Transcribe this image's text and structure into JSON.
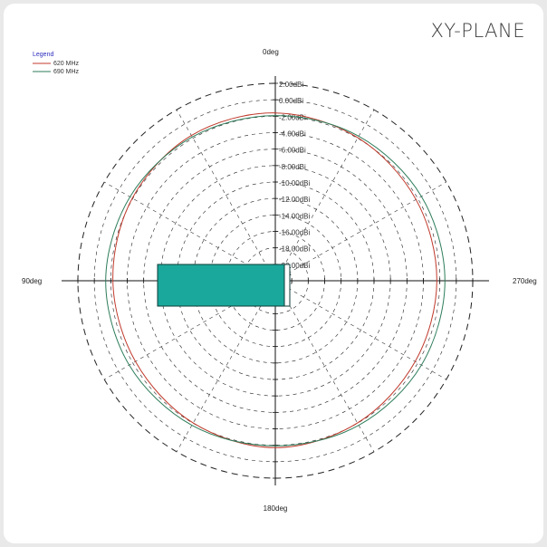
{
  "title": "XY-PLANE",
  "chart_data": {
    "type": "polar",
    "legend": {
      "title": "Legend",
      "position": "top-left",
      "entries": [
        {
          "label": "620 MHz",
          "color": "#c0392b"
        },
        {
          "label": "690 MHz",
          "color": "#2e7d5b"
        }
      ]
    },
    "angle_labels": [
      {
        "angle": 0,
        "label": "0deg"
      },
      {
        "angle": 90,
        "label": "90deg"
      },
      {
        "angle": 180,
        "label": "180deg"
      },
      {
        "angle": 270,
        "label": "270deg"
      }
    ],
    "radial_ticks": [
      "2.00dBi",
      "0.00dBi",
      "-2.00dBi",
      "-4.00dBi",
      "-6.00dBi",
      "-8.00dBi",
      "-10.00dBi",
      "-12.00dBi",
      "-14.00dBi",
      "-16.00dBi",
      "-18.00dBi",
      "-20.00dBi"
    ],
    "radial_range": [
      -20,
      2
    ],
    "grid": true,
    "series": [
      {
        "name": "620 MHz",
        "color": "#c0392b",
        "angles": [
          0,
          30,
          60,
          90,
          120,
          150,
          180,
          210,
          240,
          270,
          300,
          330
        ],
        "values": [
          -1.3,
          -1.6,
          -1.9,
          -2.0,
          -2.0,
          -1.7,
          -1.4,
          -1.7,
          -2.0,
          -1.9,
          -1.6,
          -1.3
        ]
      },
      {
        "name": "690 MHz",
        "color": "#2e7d5b",
        "angles": [
          0,
          30,
          60,
          90,
          120,
          150,
          180,
          210,
          240,
          270,
          300,
          330
        ],
        "values": [
          -1.6,
          -1.4,
          -1.2,
          -1.1,
          -1.2,
          -1.4,
          -1.6,
          -1.4,
          -1.2,
          -1.1,
          -1.3,
          -1.5
        ]
      }
    ],
    "overlay_color": "#1aa89c"
  }
}
